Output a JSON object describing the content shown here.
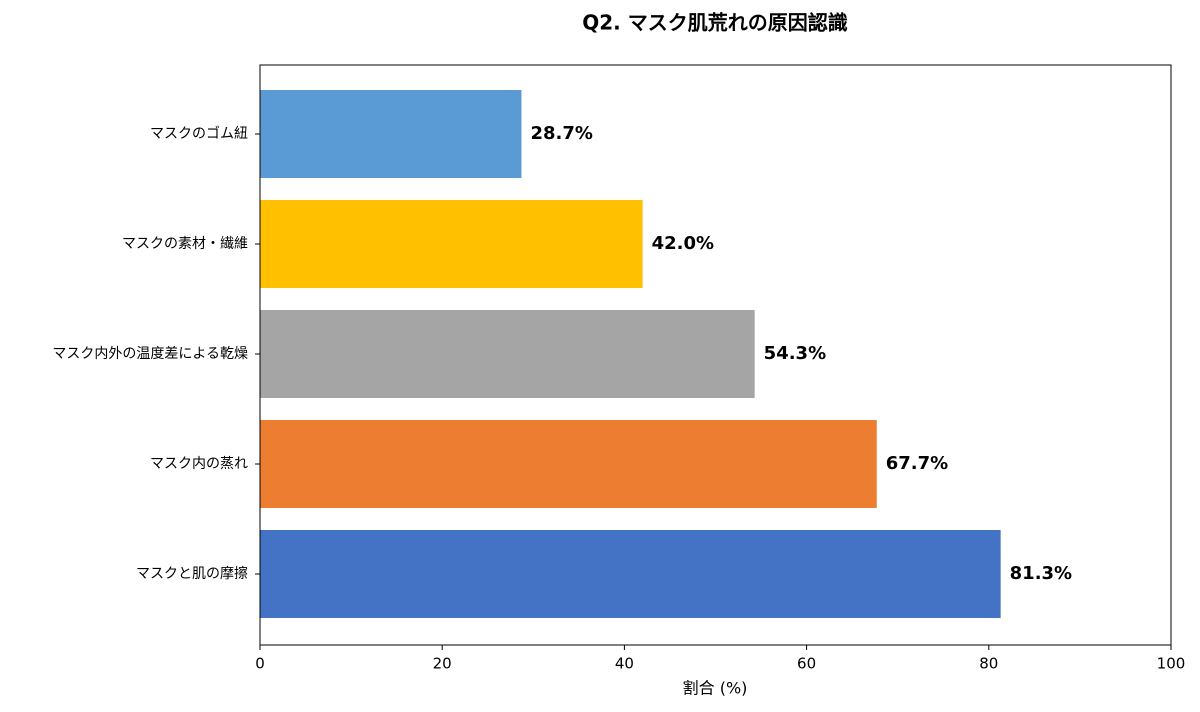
{
  "chart_data": {
    "type": "barh",
    "title": "Q2. マスク肌荒れの原因認識",
    "categories": [
      "マスクのゴム紐",
      "マスクの素材・繊維",
      "マスク内外の温度差による乾燥",
      "マスク内の蒸れ",
      "マスクと肌の摩擦"
    ],
    "values": [
      28.7,
      42.0,
      54.3,
      67.7,
      81.3
    ],
    "value_labels": [
      "28.7%",
      "42.0%",
      "54.3%",
      "67.7%",
      "81.3%"
    ],
    "colors": [
      "#5b9bd5",
      "#ffc000",
      "#a5a5a5",
      "#ed7d31",
      "#4472c4"
    ],
    "xlabel": "割合 (%)",
    "xlim": [
      0,
      100
    ],
    "xticks": [
      0,
      20,
      40,
      60,
      80,
      100
    ],
    "grid": false
  }
}
